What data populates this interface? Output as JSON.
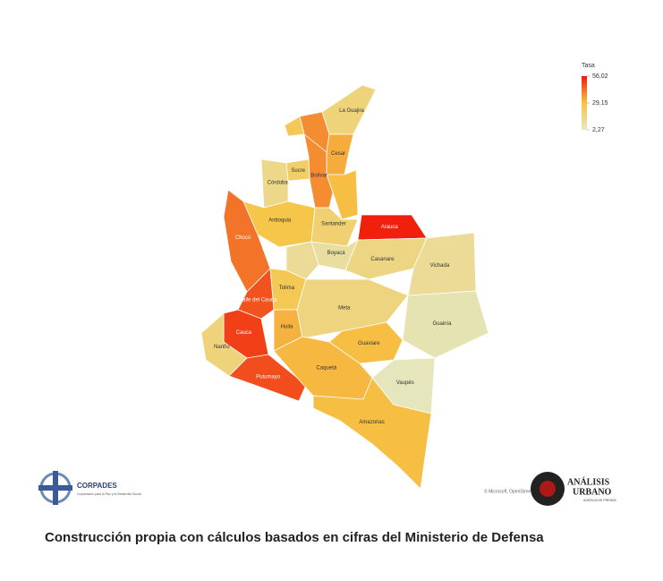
{
  "map": {
    "legend": {
      "title": "Tasa",
      "ticks": [
        {
          "value": 56.02,
          "label": "56,02"
        },
        {
          "value": 29.15,
          "label": "29,15"
        },
        {
          "value": 2.27,
          "label": "2,27"
        }
      ],
      "colors": [
        "#f01a0a",
        "#f6c445",
        "#e4e8c4"
      ]
    },
    "regions": [
      {
        "name": "La Guajira",
        "value": 18
      },
      {
        "name": null,
        "value": 38
      },
      {
        "name": "Cesar",
        "value": 33
      },
      {
        "name": null,
        "value": 26
      },
      {
        "name": "Sucre",
        "value": 22
      },
      {
        "name": "Bolívar",
        "value": 38
      },
      {
        "name": "Córdoba",
        "value": 15
      },
      {
        "name": null,
        "value": 30
      },
      {
        "name": "Antioquia",
        "value": 28
      },
      {
        "name": "Chocó",
        "value": 42
      },
      {
        "name": "Santander",
        "value": 20
      },
      {
        "name": "Arauca",
        "value": 55
      },
      {
        "name": "Boyacá",
        "value": 10
      },
      {
        "name": "Casanare",
        "value": 16
      },
      {
        "name": "Vichada",
        "value": 12
      },
      {
        "name": null,
        "value": 12
      },
      {
        "name": "Tolima",
        "value": 26
      },
      {
        "name": "Valle del Cauca",
        "value": 47
      },
      {
        "name": "Cauca",
        "value": 50
      },
      {
        "name": "Nariño",
        "value": 18
      },
      {
        "name": "Huila",
        "value": 32
      },
      {
        "name": "Putumayo",
        "value": 48
      },
      {
        "name": "Meta",
        "value": 17
      },
      {
        "name": "Guainía",
        "value": 6
      },
      {
        "name": "Guaviare",
        "value": 30
      },
      {
        "name": "Vaupés",
        "value": 4
      },
      {
        "name": "Caquetá",
        "value": 31
      },
      {
        "name": "Amazonas",
        "value": 30
      }
    ],
    "attribution": "© Microsoft, OpenStreetMap"
  },
  "logos": {
    "left": {
      "name": "CORPADES",
      "subtitle": "Corporación para la Paz y el Desarrollo Social"
    },
    "right": {
      "line1": "ANÁLISIS",
      "line2": "URBANO",
      "line3": "AGENCIA DE PRENSA"
    }
  },
  "caption": "Construcción propia con cálculos basados en cifras del Ministerio de Defensa"
}
